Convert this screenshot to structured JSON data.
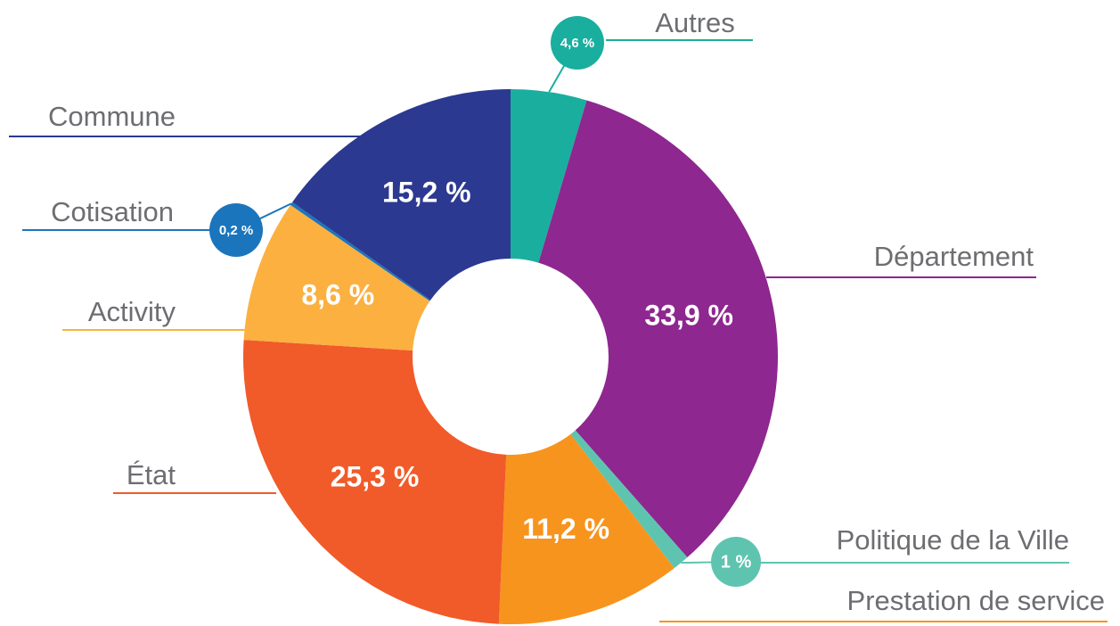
{
  "chart_data": {
    "type": "pie",
    "categories": [
      "Autres",
      "Département",
      "Politique de la Ville",
      "Prestation de service",
      "État",
      "Activity",
      "Cotisation",
      "Commune"
    ],
    "values": [
      4.6,
      33.9,
      1,
      11.2,
      25.3,
      8.6,
      0.2,
      15.2
    ],
    "value_labels": [
      "4,6 %",
      "33,9 %",
      "1 %",
      "11,2 %",
      "25,3 %",
      "8,6 %",
      "0,2 %",
      "15,2 %"
    ],
    "colors": [
      "#1aae9f",
      "#8e278f",
      "#5ec4b0",
      "#f7941d",
      "#f15a29",
      "#fbb040",
      "#1b75bc",
      "#2b3990"
    ]
  }
}
